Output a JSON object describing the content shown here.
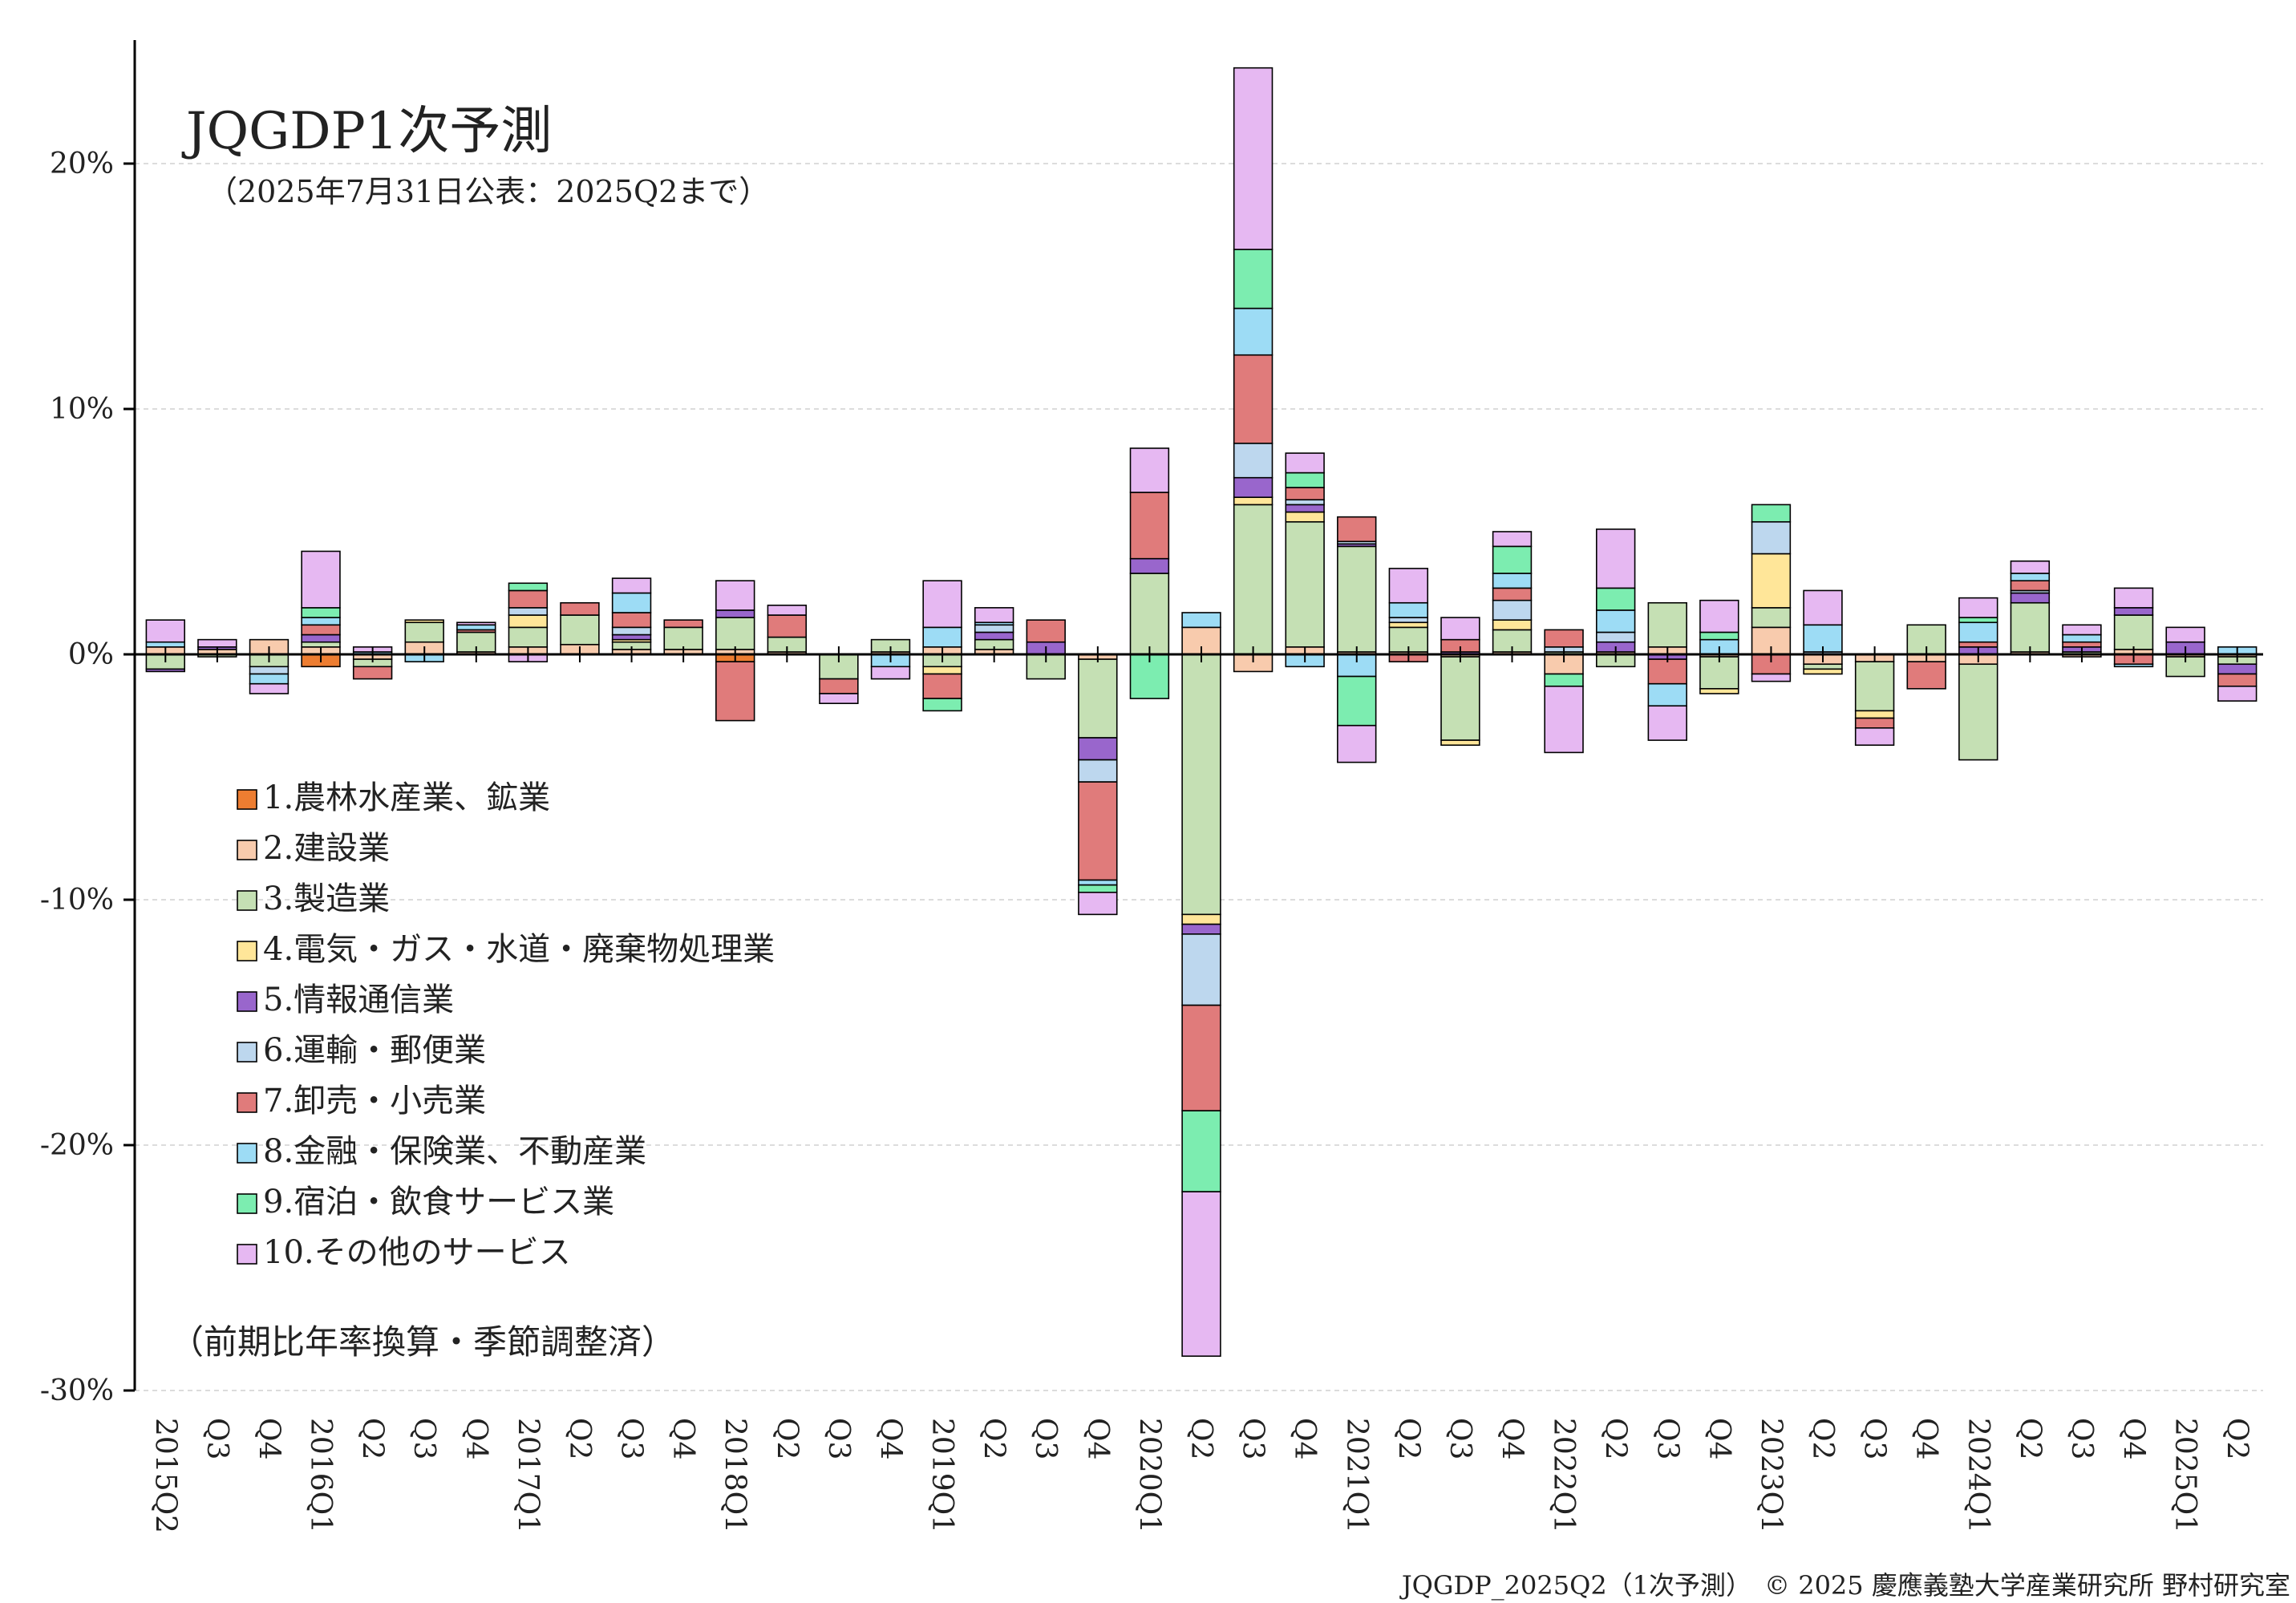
{
  "chart_data": {
    "type": "bar",
    "stacked": true,
    "title": "JQGDP1次予測",
    "subtitle": "（2025年7月31日公表：2025Q2まで）",
    "note": "（前期比年率換算・季節調整済）",
    "footer": "JQGDP_2025Q2（1次予測）　© 2025 慶應義塾大学産業研究所 野村研究室",
    "ylim": [
      -30,
      25
    ],
    "yticks": [
      20,
      10,
      0,
      -10,
      -20,
      -30
    ],
    "ytick_labels": [
      "20%",
      "10%",
      "0%",
      "-10%",
      "-20%",
      "-30%"
    ],
    "grid": true,
    "legend_position": "left",
    "categories": [
      "2015Q2",
      "Q3",
      "Q4",
      "2016Q1",
      "Q2",
      "Q3",
      "Q4",
      "2017Q1",
      "Q2",
      "Q3",
      "Q4",
      "2018Q1",
      "Q2",
      "Q3",
      "Q4",
      "2019Q1",
      "Q2",
      "Q3",
      "Q4",
      "2020Q1",
      "Q2",
      "Q3",
      "Q4",
      "2021Q1",
      "Q2",
      "Q3",
      "Q4",
      "2022Q1",
      "Q2",
      "Q3",
      "Q4",
      "2023Q1",
      "Q2",
      "Q3",
      "Q4",
      "2024Q1",
      "Q2",
      "Q3",
      "Q4",
      "2025Q1",
      "Q2"
    ],
    "series": [
      {
        "name": "1.農林水産業、鉱業",
        "color": "#ED7D31",
        "values": [
          0,
          0,
          0,
          -0.5,
          0,
          0,
          0,
          0,
          0,
          0,
          0,
          -0.3,
          0,
          0,
          0,
          0,
          0,
          0,
          0,
          0,
          0,
          0,
          0,
          0,
          0,
          0,
          0,
          0,
          0,
          0,
          0,
          0,
          0,
          0,
          0,
          0,
          0,
          0,
          0,
          0,
          0
        ]
      },
      {
        "name": "2.建設業",
        "color": "#F8CBAD",
        "values": [
          0.3,
          0.2,
          0.6,
          0.3,
          -0.2,
          0.5,
          0.1,
          0.3,
          0.4,
          0.2,
          0.2,
          0.2,
          0.1,
          0,
          0.1,
          0.3,
          0.2,
          0,
          -0.2,
          0,
          1.1,
          -0.7,
          0.3,
          0.1,
          0.1,
          -0.1,
          0.1,
          -0.8,
          0.1,
          0.3,
          -0.1,
          1.1,
          -0.4,
          -0.3,
          -0.3,
          -0.4,
          0.1,
          -0.1,
          0.2,
          -0.1,
          -0.1
        ]
      },
      {
        "name": "3.製造業",
        "color": "#C5E0B4",
        "values": [
          -0.6,
          -0.1,
          -0.5,
          0.2,
          -0.3,
          0.8,
          0.8,
          0.8,
          1.2,
          0.3,
          0.9,
          1.3,
          0.6,
          -1,
          0.5,
          -0.5,
          0.4,
          -1,
          -3.2,
          3.3,
          -10.6,
          6.1,
          5.1,
          4.3,
          1,
          -3.4,
          0.9,
          0.1,
          -0.5,
          1.8,
          -1.3,
          0.8,
          -0.2,
          -2,
          1.2,
          -3.9,
          2,
          0.1,
          1.4,
          -0.8,
          -0.3
        ]
      },
      {
        "name": "4.電気・ガス・水道・廃棄物処理業",
        "color": "#FFE699",
        "values": [
          0,
          0,
          0,
          0,
          0,
          0.1,
          0,
          0.5,
          0,
          0.1,
          0,
          0,
          0,
          0,
          0,
          -0.3,
          0,
          0,
          0,
          0,
          -0.4,
          0.3,
          0.4,
          0,
          0.2,
          -0.2,
          0.4,
          0,
          0,
          0,
          -0.2,
          2.2,
          -0.2,
          -0.3,
          0,
          0,
          0,
          0,
          0,
          0,
          0
        ]
      },
      {
        "name": "5.情報通信業",
        "color": "#9966CC",
        "values": [
          -0.1,
          0.1,
          0,
          0.3,
          0,
          0,
          0,
          0,
          0,
          0.2,
          0,
          0.3,
          0,
          0,
          0,
          0,
          0.3,
          0.5,
          -0.9,
          0.6,
          -0.4,
          0.8,
          0.3,
          0.1,
          0,
          0.1,
          0,
          0,
          0.4,
          -0.2,
          0,
          0,
          0,
          0,
          0,
          0.3,
          0.4,
          0.2,
          0.3,
          0.5,
          -0.4
        ]
      },
      {
        "name": "6.運輸・郵便業",
        "color": "#BDD7EE",
        "values": [
          0,
          0,
          -0.3,
          0,
          0,
          0,
          0,
          0.3,
          0,
          0.3,
          0,
          0,
          0,
          0,
          0,
          0,
          0.3,
          0,
          -0.9,
          0,
          -2.9,
          1.4,
          0.2,
          0.1,
          0.2,
          0,
          0.8,
          0.2,
          0.4,
          0,
          0,
          1.3,
          0.1,
          0,
          0,
          0,
          0.1,
          0,
          0,
          0,
          0
        ]
      },
      {
        "name": "7.卸売・小売業",
        "color": "#E07B7B",
        "values": [
          0,
          0,
          0,
          0.4,
          -0.5,
          0,
          0.1,
          0.7,
          0.5,
          0.6,
          0.3,
          -2.4,
          0.9,
          -0.6,
          0,
          -1,
          0,
          0.9,
          -4,
          2.7,
          -4.3,
          3.6,
          0.5,
          1,
          -0.3,
          0.5,
          0.5,
          0.7,
          0,
          -1,
          0,
          -0.8,
          0,
          -0.4,
          -1.1,
          0.2,
          0.4,
          0.2,
          -0.4,
          0,
          -0.5
        ]
      },
      {
        "name": "8.金融・保険業、不動産業",
        "color": "#9DDCF5",
        "values": [
          0.2,
          0,
          -0.4,
          0.3,
          0.1,
          -0.3,
          0.2,
          0,
          0,
          0.8,
          0,
          0,
          0,
          0,
          -0.5,
          0.8,
          0.1,
          0,
          -0.2,
          0,
          0.6,
          1.9,
          -0.5,
          -0.9,
          0.6,
          0,
          0.6,
          0,
          0.9,
          -0.9,
          0.6,
          0,
          1.1,
          0,
          0,
          0.8,
          0.3,
          0.3,
          -0.1,
          0,
          0.3
        ]
      },
      {
        "name": "9.宿泊・飲食サービス業",
        "color": "#7CEDB0",
        "values": [
          0,
          0,
          0,
          0.4,
          0,
          0,
          0,
          0.3,
          0,
          0,
          0,
          0,
          0,
          0,
          0,
          -0.5,
          0,
          0,
          -0.3,
          -1.8,
          -3.3,
          2.4,
          0.6,
          -2,
          0,
          0,
          1.1,
          -0.5,
          0.9,
          0,
          0.3,
          0.7,
          0,
          0,
          0,
          0.2,
          0,
          0,
          0,
          0,
          0
        ]
      },
      {
        "name": "10.その他のサービス",
        "color": "#E6B8F2",
        "values": [
          0.9,
          0.3,
          -0.4,
          2.3,
          0.2,
          0,
          0.1,
          -0.3,
          0,
          0.6,
          0,
          1.2,
          0.4,
          -0.4,
          -0.5,
          1.9,
          0.6,
          0,
          -0.9,
          1.8,
          -6.7,
          7.4,
          0.8,
          -1.5,
          1.4,
          0.9,
          0.6,
          -2.7,
          2.4,
          -1.4,
          1.3,
          -0.3,
          1.4,
          -0.7,
          0,
          0.8,
          0.5,
          0.4,
          0.8,
          0.6,
          -0.6
        ]
      }
    ]
  }
}
